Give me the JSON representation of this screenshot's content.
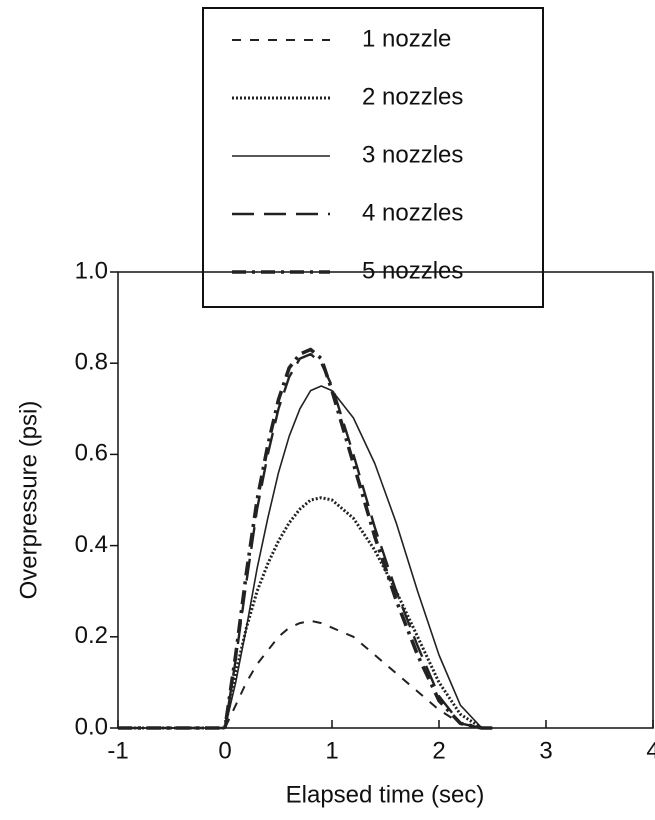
{
  "chart_data": {
    "type": "line",
    "xlabel": "Elapsed time (sec)",
    "ylabel": "Overpressure (psi)",
    "x": [
      -1,
      -0.5,
      0,
      0.1,
      0.2,
      0.3,
      0.4,
      0.5,
      0.6,
      0.7,
      0.8,
      0.9,
      1.0,
      1.2,
      1.4,
      1.6,
      1.8,
      2.0,
      2.2,
      2.4,
      2.5
    ],
    "series": [
      {
        "name": "1 nozzle",
        "color": "#222222",
        "style": "dashed",
        "values": [
          0,
          0,
          0,
          0.05,
          0.1,
          0.14,
          0.17,
          0.2,
          0.22,
          0.23,
          0.235,
          0.23,
          0.22,
          0.2,
          0.16,
          0.12,
          0.08,
          0.04,
          0.01,
          0,
          0
        ]
      },
      {
        "name": "2 nozzles",
        "color": "#222222",
        "style": "dotted",
        "values": [
          0,
          0,
          0,
          0.12,
          0.22,
          0.3,
          0.36,
          0.41,
          0.45,
          0.48,
          0.5,
          0.505,
          0.5,
          0.46,
          0.39,
          0.3,
          0.2,
          0.1,
          0.03,
          0,
          0
        ]
      },
      {
        "name": "3 nozzles",
        "color": "#222222",
        "style": "solid",
        "values": [
          0,
          0,
          0,
          0.1,
          0.22,
          0.35,
          0.46,
          0.56,
          0.64,
          0.7,
          0.74,
          0.75,
          0.74,
          0.68,
          0.58,
          0.45,
          0.3,
          0.16,
          0.05,
          0,
          0
        ]
      },
      {
        "name": "4 nozzles",
        "color": "#222222",
        "style": "longdash",
        "values": [
          0,
          0,
          0,
          0.15,
          0.32,
          0.48,
          0.6,
          0.7,
          0.77,
          0.81,
          0.82,
          0.8,
          0.75,
          0.6,
          0.44,
          0.3,
          0.18,
          0.07,
          0.01,
          0,
          0
        ]
      },
      {
        "name": "5 nozzles",
        "color": "#222222",
        "style": "dashdot",
        "values": [
          0,
          0,
          0,
          0.16,
          0.34,
          0.5,
          0.62,
          0.72,
          0.79,
          0.82,
          0.83,
          0.81,
          0.74,
          0.58,
          0.42,
          0.28,
          0.16,
          0.06,
          0.01,
          0,
          0
        ]
      }
    ],
    "xlim": [
      -1,
      4
    ],
    "ylim": [
      0,
      1
    ],
    "xticks": [
      -1,
      0,
      1,
      2,
      3,
      4
    ],
    "yticks": [
      {
        "value": 0,
        "label": "0.0"
      },
      {
        "value": 0.2,
        "label": "0.2"
      },
      {
        "value": 0.4,
        "label": "0.4"
      },
      {
        "value": 0.6,
        "label": "0.6"
      },
      {
        "value": 0.8,
        "label": "0.8"
      },
      {
        "value": 1,
        "label": "1.0"
      }
    ],
    "legend": "top"
  }
}
